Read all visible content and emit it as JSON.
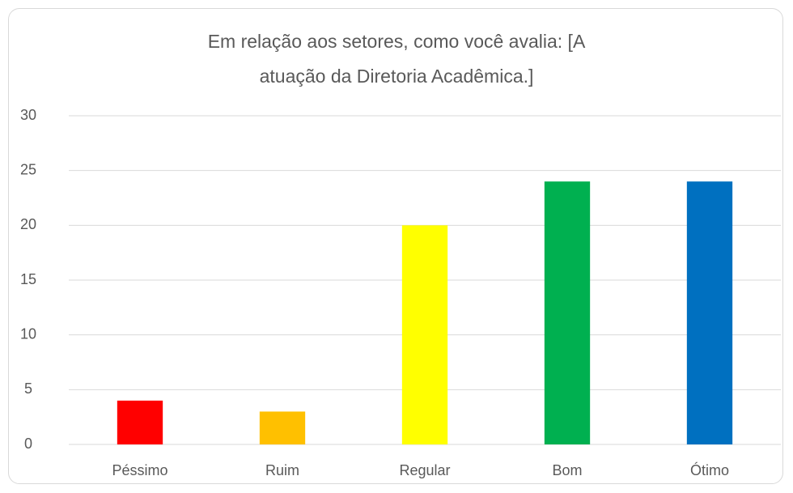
{
  "chart_data": {
    "type": "bar",
    "title": "Em relação aos setores, como você avalia: [A atuação da Diretoria Acadêmica.]",
    "categories": [
      "Péssimo",
      "Ruim",
      "Regular",
      "Bom",
      "Ótimo"
    ],
    "values": [
      4,
      3,
      20,
      24,
      24
    ],
    "colors": [
      "#ff0000",
      "#ffc000",
      "#ffff00",
      "#00b050",
      "#0070c0"
    ],
    "ylim": [
      0,
      30
    ],
    "yticks": [
      0,
      5,
      10,
      15,
      20,
      25,
      30
    ],
    "grid": true
  }
}
